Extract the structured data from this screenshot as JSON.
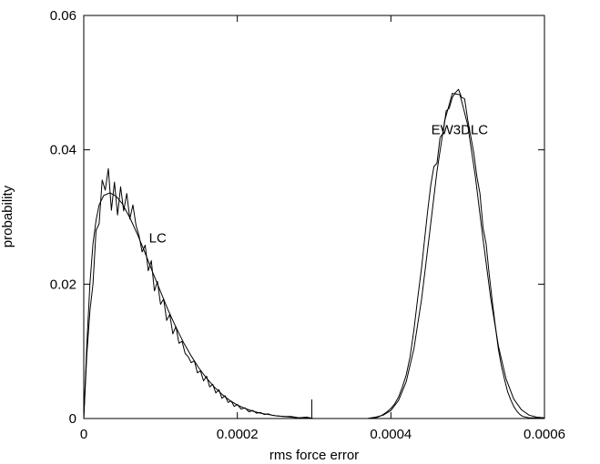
{
  "chart_data": {
    "type": "line",
    "title": "",
    "xlabel": "rms force error",
    "ylabel": "probability",
    "xlim": [
      0,
      0.0006
    ],
    "ylim": [
      0,
      0.06
    ],
    "x_ticks": [
      0,
      0.0002,
      0.0004,
      0.0006
    ],
    "x_tick_labels": [
      "0",
      "0.0002",
      "0.0004",
      "0.0006"
    ],
    "y_ticks": [
      0,
      0.02,
      0.04,
      0.06
    ],
    "y_tick_labels": [
      "0",
      "0.02",
      "0.04",
      "0.06"
    ],
    "grid": false,
    "legend": "none",
    "annotations": [
      {
        "text": "LC",
        "x": 8.5e-05,
        "y": 0.0262
      },
      {
        "text": "EW3DLC",
        "x": 0.0004525,
        "y": 0.0423
      }
    ],
    "series": [
      {
        "values_xy": [
          [
            0,
            0
          ],
          [
            4e-06,
            0.0095
          ],
          [
            8e-06,
            0.016
          ],
          [
            1.2e-05,
            0.02
          ],
          [
            1.6e-05,
            0.028
          ],
          [
            2e-05,
            0.029
          ],
          [
            2.4e-05,
            0.0355
          ],
          [
            2.8e-05,
            0.034
          ],
          [
            3.2e-05,
            0.0372
          ],
          [
            3.6e-05,
            0.031
          ],
          [
            4e-05,
            0.0352
          ],
          [
            4.4e-05,
            0.0303
          ],
          [
            4.8e-05,
            0.0345
          ],
          [
            5.2e-05,
            0.0309
          ],
          [
            5.6e-05,
            0.0335
          ],
          [
            6e-05,
            0.0297
          ],
          [
            6.4e-05,
            0.0318
          ],
          [
            6.8e-05,
            0.0288
          ],
          [
            7.2e-05,
            0.0272
          ],
          [
            7.6e-05,
            0.0248
          ],
          [
            8e-05,
            0.0258
          ],
          [
            8.4e-05,
            0.022
          ],
          [
            8.8e-05,
            0.0235
          ],
          [
            9.2e-05,
            0.019
          ],
          [
            9.6e-05,
            0.0204
          ],
          [
            0.0001,
            0.017
          ],
          [
            0.000104,
            0.0178
          ],
          [
            0.000108,
            0.0146
          ],
          [
            0.000112,
            0.0155
          ],
          [
            0.000116,
            0.0126
          ],
          [
            0.00012,
            0.0137
          ],
          [
            0.000124,
            0.0112
          ],
          [
            0.000128,
            0.0115
          ],
          [
            0.000132,
            0.0097
          ],
          [
            0.000136,
            0.0092
          ],
          [
            0.00014,
            0.0083
          ],
          [
            0.000144,
            0.0086
          ],
          [
            0.000148,
            0.0068
          ],
          [
            0.000152,
            0.0071
          ],
          [
            0.000156,
            0.0056
          ],
          [
            0.00016,
            0.0063
          ],
          [
            0.000164,
            0.0047
          ],
          [
            0.000168,
            0.0051
          ],
          [
            0.000172,
            0.0038
          ],
          [
            0.000176,
            0.0043
          ],
          [
            0.00018,
            0.003
          ],
          [
            0.000184,
            0.0034
          ],
          [
            0.000188,
            0.0024
          ],
          [
            0.000192,
            0.0026
          ],
          [
            0.000196,
            0.0018
          ],
          [
            0.0002,
            0.0021
          ],
          [
            0.000205,
            0.0014
          ],
          [
            0.00021,
            0.0016
          ],
          [
            0.000215,
            0.001
          ],
          [
            0.00022,
            0.0012
          ],
          [
            0.000225,
            0.0008
          ],
          [
            0.00023,
            0.0009
          ],
          [
            0.000235,
            0.0006
          ],
          [
            0.00024,
            0.0007
          ],
          [
            0.000245,
            0.0005
          ],
          [
            0.00025,
            0.0004
          ],
          [
            0.00026,
            0.0003
          ],
          [
            0.00027,
            0.0003
          ],
          [
            0.00028,
            0.0001
          ],
          [
            0.00029,
            0.0002
          ],
          [
            0.000295,
            0.0001
          ],
          [
            0.000297,
            0.0
          ],
          [
            0.000297,
            0.0028
          ],
          [
            0.000297,
            0.0
          ],
          [
            0.0003,
            0
          ],
          [
            0.00037,
            0
          ],
          [
            0.000375,
            0.0001
          ],
          [
            0.00038,
            0.0001
          ],
          [
            0.000385,
            0.0003
          ],
          [
            0.00039,
            0.0006
          ],
          [
            0.000395,
            0.001
          ],
          [
            0.0004,
            0.0015
          ],
          [
            0.000405,
            0.0022
          ],
          [
            0.00041,
            0.0032
          ],
          [
            0.000415,
            0.0047
          ],
          [
            0.00042,
            0.0065
          ],
          [
            0.000425,
            0.0092
          ],
          [
            0.00043,
            0.0132
          ],
          [
            0.000435,
            0.018
          ],
          [
            0.00044,
            0.0225
          ],
          [
            0.000444,
            0.0268
          ],
          [
            0.000448,
            0.031
          ],
          [
            0.000452,
            0.0348
          ],
          [
            0.000456,
            0.0375
          ],
          [
            0.00046,
            0.038
          ],
          [
            0.000464,
            0.0418
          ],
          [
            0.000468,
            0.0425
          ],
          [
            0.000472,
            0.0458
          ],
          [
            0.000476,
            0.0462
          ],
          [
            0.00048,
            0.0478
          ],
          [
            0.000484,
            0.0485
          ],
          [
            0.000488,
            0.049
          ],
          [
            0.000492,
            0.0478
          ],
          [
            0.000496,
            0.0476
          ],
          [
            0.0005,
            0.0445
          ],
          [
            0.000504,
            0.042
          ],
          [
            0.000508,
            0.0395
          ],
          [
            0.000512,
            0.036
          ],
          [
            0.000516,
            0.0335
          ],
          [
            0.00052,
            0.0284
          ],
          [
            0.000524,
            0.026
          ],
          [
            0.000528,
            0.0215
          ],
          [
            0.000532,
            0.0175
          ],
          [
            0.000536,
            0.0138
          ],
          [
            0.00054,
            0.0103
          ],
          [
            0.000544,
            0.0078
          ],
          [
            0.000548,
            0.0058
          ],
          [
            0.000552,
            0.004
          ],
          [
            0.000556,
            0.0028
          ],
          [
            0.00056,
            0.0018
          ],
          [
            0.000564,
            0.0011
          ],
          [
            0.000568,
            0.0006
          ],
          [
            0.000572,
            0.0003
          ],
          [
            0.00058,
            0.0001
          ],
          [
            0.00059,
            0.0001
          ],
          [
            0.0006,
            0
          ]
        ]
      },
      {
        "values_xy": [
          [
            0,
            0
          ],
          [
            4e-06,
            0.011
          ],
          [
            8e-06,
            0.02
          ],
          [
            1.2e-05,
            0.026
          ],
          [
            1.6e-05,
            0.0295
          ],
          [
            2e-05,
            0.0318
          ],
          [
            2.6e-05,
            0.0332
          ],
          [
            3.4e-05,
            0.0336
          ],
          [
            4.2e-05,
            0.0331
          ],
          [
            5e-05,
            0.032
          ],
          [
            6e-05,
            0.0299
          ],
          [
            7e-05,
            0.0274
          ],
          [
            8e-05,
            0.0246
          ],
          [
            9e-05,
            0.0217
          ],
          [
            0.0001,
            0.0189
          ],
          [
            0.00011,
            0.0161
          ],
          [
            0.00012,
            0.0136
          ],
          [
            0.00013,
            0.0113
          ],
          [
            0.00014,
            0.0093
          ],
          [
            0.00015,
            0.0075
          ],
          [
            0.00016,
            0.006
          ],
          [
            0.00017,
            0.0047
          ],
          [
            0.00018,
            0.0036
          ],
          [
            0.00019,
            0.0027
          ],
          [
            0.0002,
            0.002
          ],
          [
            0.00021,
            0.0015
          ],
          [
            0.00022,
            0.0011
          ],
          [
            0.00023,
            0.0008
          ],
          [
            0.00024,
            0.0006
          ],
          [
            0.00025,
            0.0004
          ],
          [
            0.00026,
            0.0003
          ],
          [
            0.00027,
            0.0002
          ],
          [
            0.00028,
            0.0001
          ],
          [
            0.00029,
            0.0001
          ],
          [
            0.0003,
            0
          ],
          [
            0.00037,
            0
          ],
          [
            0.00038,
            0.0002
          ],
          [
            0.00039,
            0.0005
          ],
          [
            0.0004,
            0.0012
          ],
          [
            0.00041,
            0.0027
          ],
          [
            0.00042,
            0.0055
          ],
          [
            0.00043,
            0.0104
          ],
          [
            0.00044,
            0.0178
          ],
          [
            0.00045,
            0.0272
          ],
          [
            0.00046,
            0.0368
          ],
          [
            0.00047,
            0.0443
          ],
          [
            0.00048,
            0.0484
          ],
          [
            0.00049,
            0.0482
          ],
          [
            0.0005,
            0.0437
          ],
          [
            0.00051,
            0.036
          ],
          [
            0.00052,
            0.0267
          ],
          [
            0.00053,
            0.0179
          ],
          [
            0.00054,
            0.0108
          ],
          [
            0.00055,
            0.0059
          ],
          [
            0.00056,
            0.0029
          ],
          [
            0.00057,
            0.0013
          ],
          [
            0.00058,
            0.0005
          ],
          [
            0.00059,
            0.0002
          ],
          [
            0.0006,
            0.0001
          ]
        ]
      }
    ]
  }
}
